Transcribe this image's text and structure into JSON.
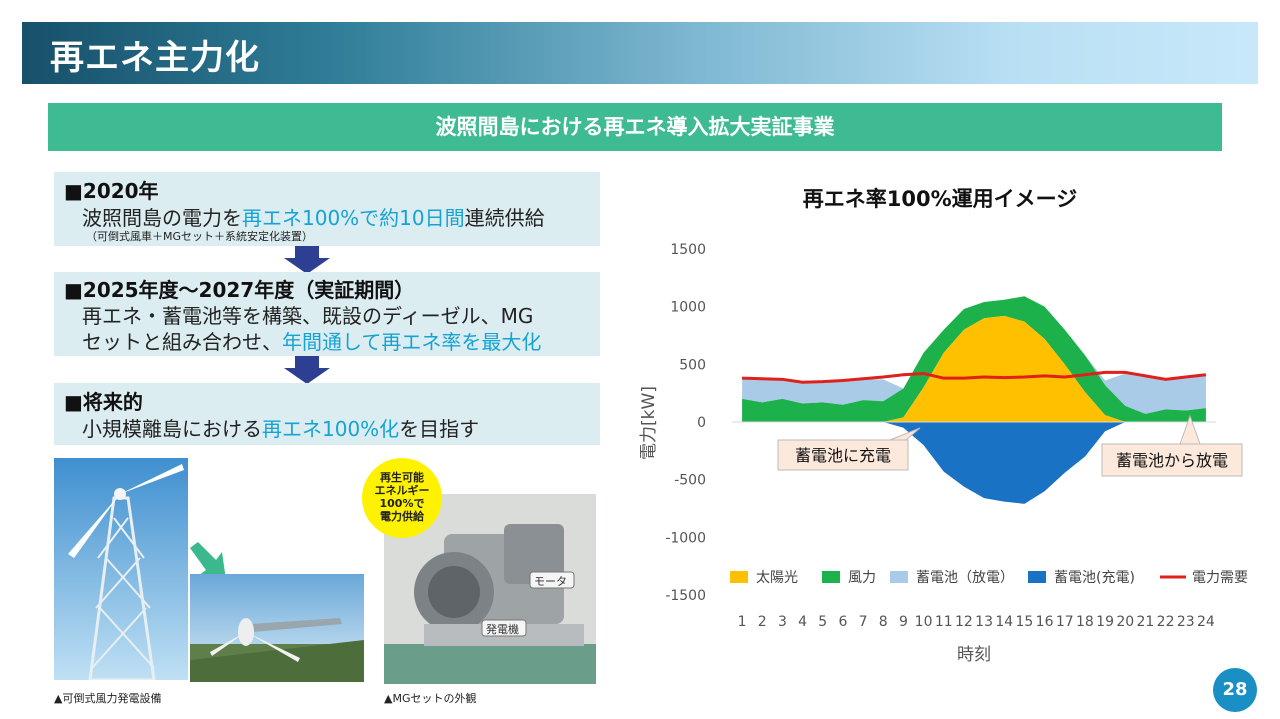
{
  "header": {
    "title": "再エネ主力化"
  },
  "banner": {
    "title": "波照間島における再エネ導入拡大実証事業"
  },
  "section1": {
    "heading": "■2020年",
    "line_pre": "波照間島の電力を",
    "line_hl": "再エネ100%で約10日間",
    "line_post": "連続供給",
    "note": "（可倒式風車＋MGセット＋系統安定化装置）"
  },
  "section2": {
    "heading": "■2025年度～2027年度（実証期間）",
    "line1": "再エネ・蓄電池等を構築、既設のディーゼル、MG",
    "line2_pre": "セットと組み合わせ、",
    "line2_hl": "年間通して再エネ率を最大化"
  },
  "section3": {
    "heading": "■将来的",
    "line_pre": "小規模離島における",
    "line_hl": "再エネ100%化",
    "line_post": "を目指す"
  },
  "photos": {
    "caption_left": "▲可倒式風力発電設備",
    "caption_right": "▲MGセットの外観",
    "bubble": [
      "再生可能",
      "エネルギー",
      "100%で",
      "電力供給"
    ],
    "label_motor": "モータ",
    "label_generator": "発電機"
  },
  "page_number": "28",
  "colors": {
    "solar": "#ffc000",
    "wind": "#1db14b",
    "discharge": "#a9cbe8",
    "charge": "#1a72c4",
    "demand": "#e0201b",
    "banner": "#3ebb92",
    "accent_text": "#16a3d3"
  },
  "chart_data": {
    "type": "area",
    "title": "再エネ率100%運用イメージ",
    "xlabel": "時刻",
    "ylabel": "電力[kW]",
    "x": [
      1,
      2,
      3,
      4,
      5,
      6,
      7,
      8,
      9,
      10,
      11,
      12,
      13,
      14,
      15,
      16,
      17,
      18,
      19,
      20,
      21,
      22,
      23,
      24
    ],
    "ylim": [
      -1500,
      1500
    ],
    "yticks": [
      1500,
      1000,
      500,
      0,
      -500,
      -1000,
      -1500
    ],
    "stacked": true,
    "series": [
      {
        "name": "太陽光",
        "color": "#ffc000",
        "values": [
          0,
          0,
          0,
          0,
          0,
          0,
          0,
          0,
          40,
          300,
          600,
          800,
          900,
          920,
          870,
          720,
          500,
          260,
          60,
          0,
          0,
          0,
          0,
          0
        ]
      },
      {
        "name": "風力",
        "color": "#1db14b",
        "values": [
          200,
          170,
          200,
          160,
          170,
          150,
          190,
          180,
          250,
          300,
          200,
          180,
          140,
          140,
          220,
          280,
          300,
          320,
          260,
          140,
          70,
          110,
          100,
          120
        ]
      },
      {
        "name": "蓄電池（放電）",
        "color": "#a9cbe8",
        "values": [
          180,
          200,
          170,
          190,
          180,
          210,
          180,
          190,
          0,
          0,
          0,
          0,
          0,
          0,
          0,
          0,
          0,
          0,
          40,
          280,
          320,
          270,
          290,
          290
        ]
      },
      {
        "name": "蓄電池(充電)",
        "color": "#1a72c4",
        "values": [
          0,
          0,
          0,
          0,
          0,
          0,
          0,
          0,
          -50,
          -200,
          -430,
          -560,
          -660,
          -690,
          -710,
          -600,
          -440,
          -300,
          -80,
          0,
          0,
          0,
          0,
          0
        ]
      },
      {
        "name": "電力需要",
        "color": "#e0201b",
        "type": "line",
        "values": [
          380,
          375,
          370,
          345,
          350,
          360,
          375,
          390,
          410,
          420,
          380,
          380,
          390,
          385,
          390,
          400,
          390,
          410,
          430,
          430,
          400,
          370,
          390,
          410
        ]
      }
    ],
    "annotations": [
      "蓄電池に充電",
      "蓄電池から放電"
    ],
    "legend": "bottom",
    "grid": false
  }
}
